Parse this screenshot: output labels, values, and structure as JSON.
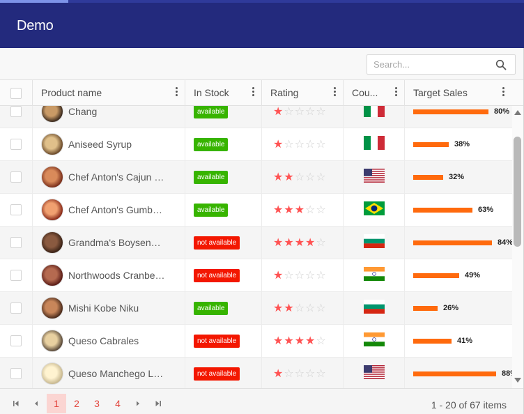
{
  "app": {
    "title": "Demo"
  },
  "search": {
    "placeholder": "Search..."
  },
  "columns": [
    {
      "label": "Product name"
    },
    {
      "label": "In Stock"
    },
    {
      "label": "Rating"
    },
    {
      "label": "Cou..."
    },
    {
      "label": "Target Sales"
    }
  ],
  "colors": {
    "header": "#232a7d",
    "available": "#37b400",
    "not_available": "#f31700",
    "bar": "#ff6a0d",
    "star": "#ff5252"
  },
  "rows": [
    {
      "name": "Chang",
      "stock": "available",
      "in_stock": true,
      "rating": 1,
      "country": "italy",
      "target": "80%",
      "target_value": 80
    },
    {
      "name": "Aniseed Syrup",
      "stock": "available",
      "in_stock": true,
      "rating": 1,
      "country": "italy",
      "target": "38%",
      "target_value": 38
    },
    {
      "name": "Chef Anton's Cajun Seasoning",
      "stock": "available",
      "in_stock": true,
      "rating": 2,
      "country": "usa",
      "target": "32%",
      "target_value": 32
    },
    {
      "name": "Chef Anton's Gumbo Mix",
      "stock": "available",
      "in_stock": true,
      "rating": 3,
      "country": "brazil",
      "target": "63%",
      "target_value": 63
    },
    {
      "name": "Grandma's Boysenberry Spread",
      "stock": "not available",
      "in_stock": false,
      "rating": 4,
      "country": "bulgaria",
      "target": "84%",
      "target_value": 84
    },
    {
      "name": "Northwoods Cranberry Sauce",
      "stock": "not available",
      "in_stock": false,
      "rating": 1,
      "country": "india",
      "target": "49%",
      "target_value": 49
    },
    {
      "name": "Mishi Kobe Niku",
      "stock": "available",
      "in_stock": true,
      "rating": 2,
      "country": "bulgaria",
      "target": "26%",
      "target_value": 26
    },
    {
      "name": "Queso Cabrales",
      "stock": "not available",
      "in_stock": false,
      "rating": 4,
      "country": "india",
      "target": "41%",
      "target_value": 41
    },
    {
      "name": "Queso Manchego La Pastora",
      "stock": "not available",
      "in_stock": false,
      "rating": 1,
      "country": "usa",
      "target": "88%",
      "target_value": 88
    }
  ],
  "pager": {
    "pages": [
      "1",
      "2",
      "3",
      "4"
    ],
    "active_page": "1",
    "info": "1 - 20 of 67 items"
  }
}
